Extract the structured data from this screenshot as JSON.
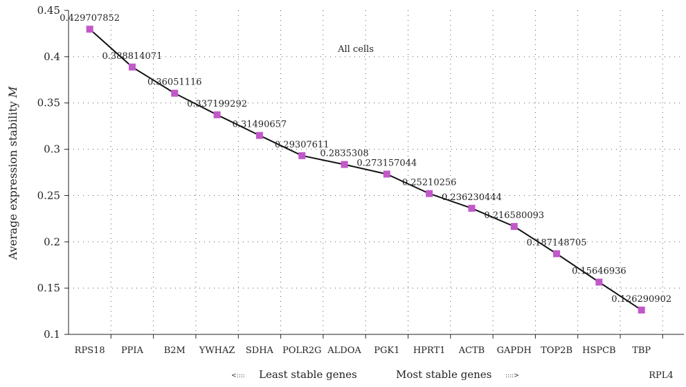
{
  "chart_data": {
    "type": "line",
    "title": "",
    "ylabel": "Average expression stability",
    "ylabel_symbol": "M",
    "ylim": [
      0.1,
      0.45
    ],
    "yticks": [
      "0.1",
      "0.15",
      "0.2",
      "0.25",
      "0.3",
      "0.35",
      "0.4",
      "0.45"
    ],
    "categories": [
      "RPS18",
      "PPIA",
      "B2M",
      "YWHAZ",
      "SDHA",
      "POLR2G",
      "ALDOA",
      "PGK1",
      "HPRT1",
      "ACTB",
      "GAPDH",
      "TOP2B",
      "HSPCB",
      "TBP"
    ],
    "extra_category": "RPL4",
    "values": [
      0.429707852,
      0.388814071,
      0.36051116,
      0.337199292,
      0.31490657,
      0.29307611,
      0.2835308,
      0.273157044,
      0.25210256,
      0.236230444,
      0.216580093,
      0.187148705,
      0.15646936,
      0.126290902
    ],
    "value_labels": [
      "0.429707852",
      "0.388814071",
      "0.36051116",
      "0.337199292",
      "0.31490657",
      "0.29307611",
      "0.2835308",
      "0.273157044",
      "0.25210256",
      "0.236230444",
      "0.216580093",
      "0.187148705",
      "0.15646936",
      "0.126290902"
    ],
    "annotation": "All cells",
    "grid": true,
    "line_color": "#111111",
    "marker_color": "#c158c9"
  },
  "footer": {
    "left_arrow": "<::::",
    "least_label": "Least stable genes",
    "most_label": "Most stable genes",
    "right_arrow": "::::>"
  }
}
